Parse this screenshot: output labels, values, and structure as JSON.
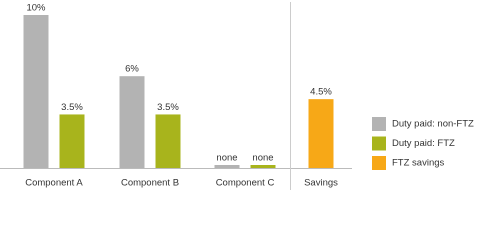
{
  "chart_data": {
    "type": "bar",
    "categories": [
      "Component A",
      "Component B",
      "Component C",
      "Savings"
    ],
    "series": [
      {
        "name": "Duty paid: non-FTZ",
        "color": "#b3b3b3",
        "values": [
          10,
          6,
          0,
          null
        ],
        "value_labels": [
          "10%",
          "6%",
          "none",
          null
        ]
      },
      {
        "name": "Duty paid: FTZ",
        "color": "#a8b41c",
        "values": [
          3.5,
          3.5,
          0,
          null
        ],
        "value_labels": [
          "3.5%",
          "3.5%",
          "none",
          null
        ]
      },
      {
        "name": "FTZ savings",
        "color": "#f7a817",
        "values": [
          null,
          null,
          null,
          4.5
        ],
        "value_labels": [
          null,
          null,
          null,
          "4.5%"
        ]
      }
    ],
    "ylim": [
      0,
      10
    ]
  }
}
